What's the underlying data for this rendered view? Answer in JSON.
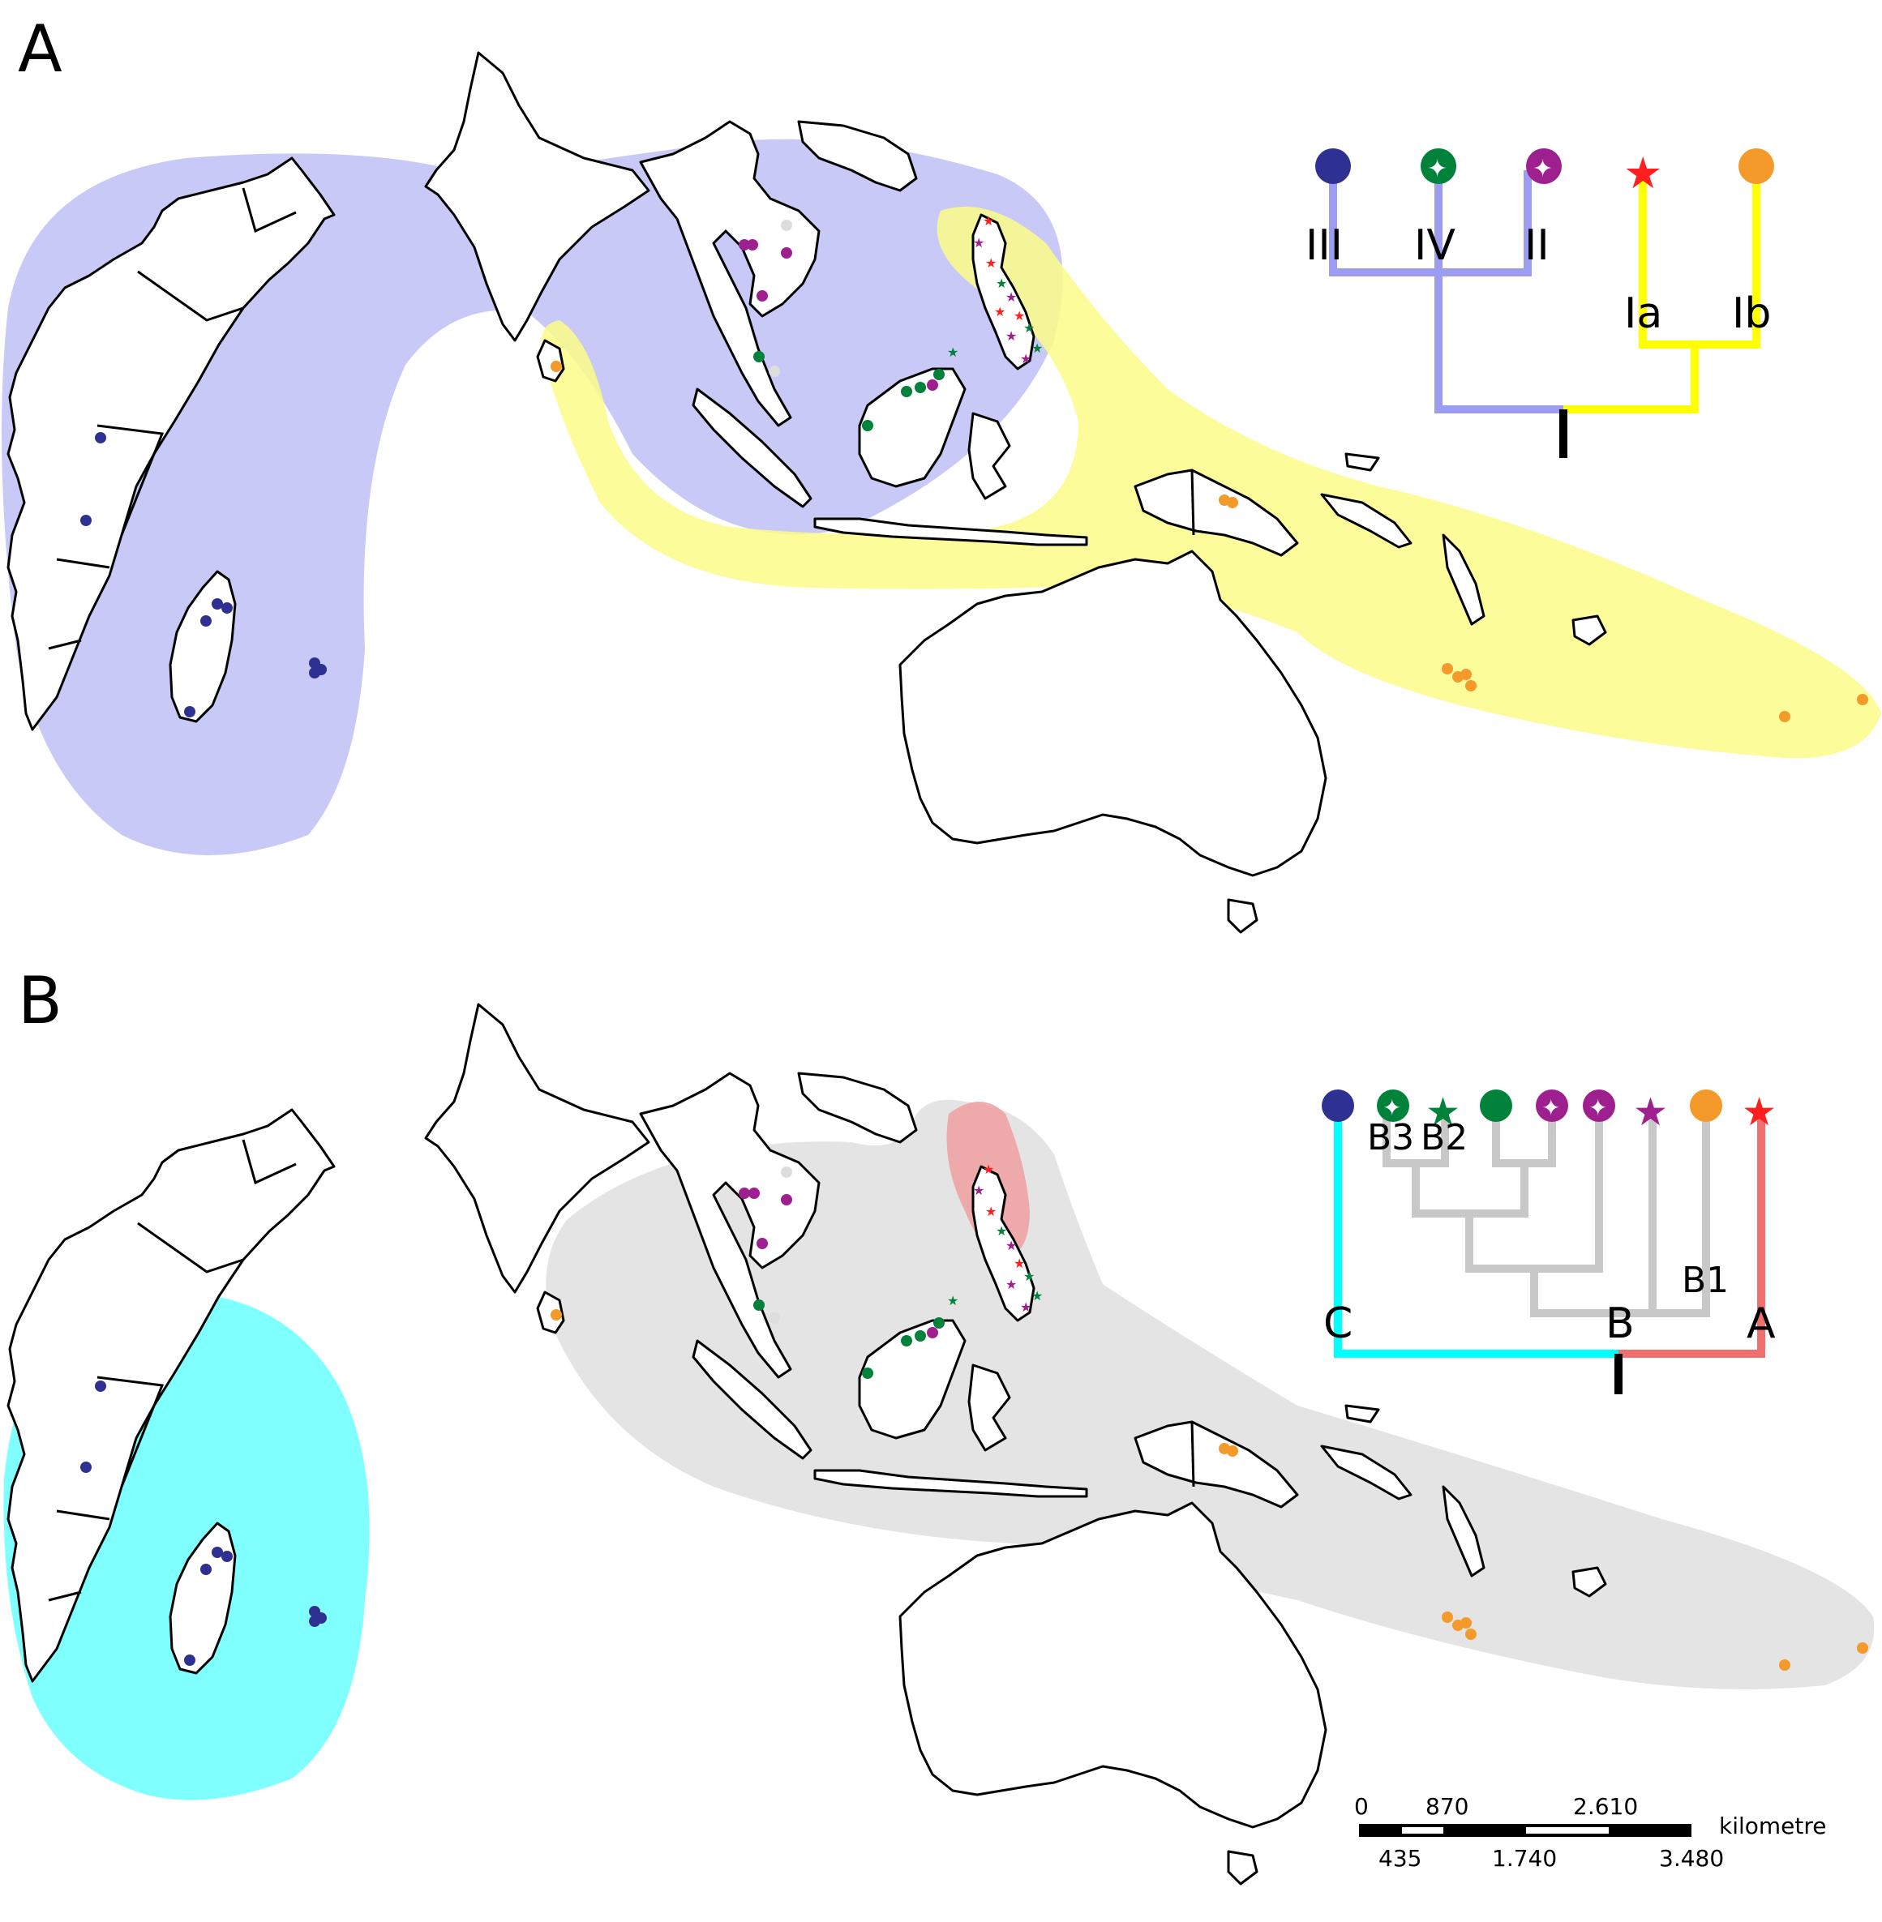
{
  "panels": [
    {
      "letter": "A",
      "tree_labels": [
        "III",
        "IV",
        "II",
        "Ia",
        "Ib"
      ]
    },
    {
      "letter": "B",
      "tree_labels": [
        "B3",
        "B2",
        "B1",
        "C",
        "B",
        "A"
      ]
    }
  ],
  "colors": {
    "region_blue": "#c9c9f7",
    "region_yellow": "#fbfb88",
    "region_cyan": "#80ffff",
    "region_grey": "#e4e4e4",
    "region_red": "#f0a0a0",
    "tree_blue": "#9c9cf0",
    "tree_yellow": "#ffff00",
    "tree_cyan": "#00ffff",
    "tree_grey": "#c8c8c8",
    "tree_red": "#f07070",
    "navy": "#2e3192",
    "green": "#00823b",
    "magenta": "#9e1f8e",
    "red": "#ff1f1f",
    "orange": "#f39a2b",
    "lightgrey": "#dddddd"
  },
  "legend_symbols": {
    "panel_A": [
      "navy-circle",
      "green-starburst",
      "magenta-starburst",
      "red-star",
      "orange-circle"
    ],
    "panel_B": [
      "navy-circle",
      "green-starburst",
      "green-star",
      "green-circle",
      "magenta-starburst",
      "magenta-starburst",
      "magenta-star",
      "orange-circle",
      "red-star"
    ]
  },
  "scale_bar": {
    "top_labels": [
      "0",
      "870",
      "2.610"
    ],
    "bottom_labels": [
      "435",
      "1.740",
      "3.480"
    ],
    "unit": "kilometre"
  }
}
